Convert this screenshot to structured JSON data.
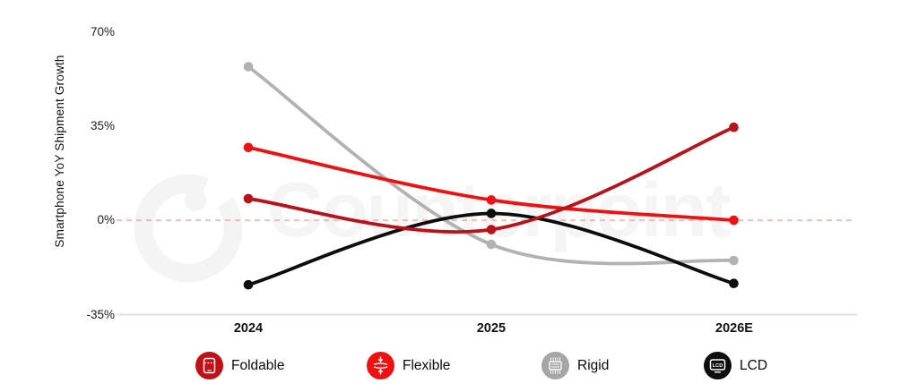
{
  "chart": {
    "y_axis_title": "Smartphone YoY Shipment Growth",
    "watermark": "Counterpoint",
    "chart_data": {
      "type": "line",
      "title": "",
      "x": [
        "2024",
        "2025",
        "2026E"
      ],
      "series": [
        {
          "name": "Foldable",
          "values": [
            8,
            -3.5,
            34.5
          ],
          "color": "#b8121a"
        },
        {
          "name": "Flexible",
          "values": [
            27,
            7.5,
            0
          ],
          "color": "#ee1111"
        },
        {
          "name": "Rigid",
          "values": [
            57,
            -9,
            -15
          ],
          "color": "#b2b2b2"
        },
        {
          "name": "LCD",
          "values": [
            -24,
            2.5,
            -23.5
          ],
          "color": "#0d0d0d"
        }
      ],
      "xlabel": "",
      "ylabel": "Smartphone YoY Shipment Growth",
      "ylim": [
        -35,
        70
      ],
      "yticks": [
        {
          "value": 70,
          "label": "70%"
        },
        {
          "value": 35,
          "label": "35%"
        },
        {
          "value": 0,
          "label": "0%"
        },
        {
          "value": -35,
          "label": "-35%"
        }
      ],
      "grid": "off",
      "zero_line": {
        "value": 0,
        "style": "dashed",
        "color": "#ff7d7d"
      },
      "legend_position": "bottom"
    },
    "legend": [
      {
        "label": "Foldable",
        "icon": "foldable-phone-icon",
        "color": "#c11016"
      },
      {
        "label": "Flexible",
        "icon": "flexible-display-icon",
        "color": "#f01010"
      },
      {
        "label": "Rigid",
        "icon": "rigid-display-icon",
        "color": "#a6a6a6"
      },
      {
        "label": "LCD",
        "icon": "lcd-monitor-icon",
        "color": "#0d0d0d",
        "icon_text": "LCD"
      }
    ]
  }
}
